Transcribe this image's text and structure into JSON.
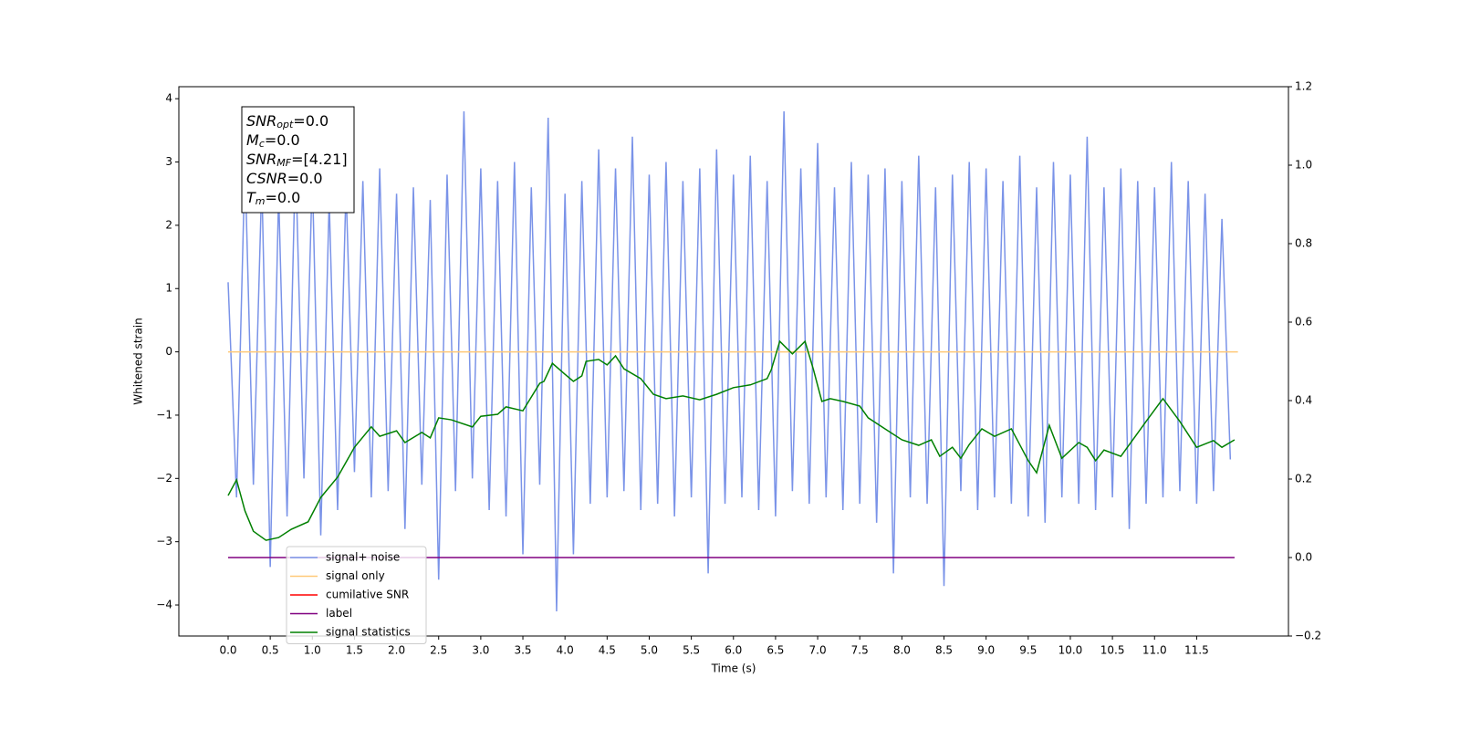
{
  "chart_data": {
    "type": "line",
    "xlabel": "Time (s)",
    "ylabel": "Whitened strain",
    "annotation": [
      {
        "main": "SNR",
        "sub": "opt",
        "rest": "=0.0"
      },
      {
        "main": "M",
        "sub": "c",
        "rest": "=0.0"
      },
      {
        "main": "SNR",
        "sub": "MF",
        "rest": "=[4.21]"
      },
      {
        "main": "CSNR",
        "rest": "=0.0"
      },
      {
        "main": "T",
        "sub": "m",
        "rest": "=0.0"
      }
    ],
    "xlim": [
      -0.585,
      12.59
    ],
    "xticks": [
      {
        "value": 0,
        "label": "0.0"
      },
      0.5,
      {
        "value": 1,
        "label": "1.0"
      },
      1.5,
      {
        "value": 2,
        "label": "2.0"
      },
      2.5,
      {
        "value": 3,
        "label": "3.0"
      },
      3.5,
      {
        "value": 4,
        "label": "4.0"
      },
      4.5,
      {
        "value": 5,
        "label": "5.0"
      },
      5.5,
      {
        "value": 6,
        "label": "6.0"
      },
      6.5,
      {
        "value": 7,
        "label": "7.0"
      },
      7.5,
      {
        "value": 8,
        "label": "8.0"
      },
      8.5,
      {
        "value": 9,
        "label": "9.0"
      },
      9.5,
      {
        "value": 10,
        "label": "10.0"
      },
      10.5,
      {
        "value": 11,
        "label": "11.0"
      },
      11.5
    ],
    "ylim": [
      -4.49,
      4.19
    ],
    "yticks": [
      {
        "value": -4,
        "label": "−4"
      },
      {
        "value": -3,
        "label": "−3"
      },
      {
        "value": -2,
        "label": "−2"
      },
      {
        "value": -1,
        "label": "−1"
      },
      0,
      1,
      2,
      3,
      4
    ],
    "y2lim": [
      -0.2,
      1.2
    ],
    "y2ticks": [
      {
        "value": -0.2,
        "label": "−0.2"
      },
      {
        "value": 0,
        "label": "0.0"
      },
      0.2,
      0.4,
      0.6,
      0.8,
      {
        "value": 1,
        "label": "1.0"
      },
      1.2
    ],
    "legend": "lower left",
    "series": [
      {
        "name": "signal+ noise",
        "color": "#7a93e8",
        "x": [
          0.0,
          0.1,
          0.2,
          0.3,
          0.4,
          0.5,
          0.6,
          0.7,
          0.8,
          0.9,
          1.0,
          1.1,
          1.2,
          1.3,
          1.4,
          1.5,
          1.6,
          1.7,
          1.8,
          1.9,
          2.0,
          2.1,
          2.2,
          2.3,
          2.4,
          2.5,
          2.6,
          2.7,
          2.8,
          2.9,
          3.0,
          3.1,
          3.2,
          3.3,
          3.4,
          3.5,
          3.6,
          3.7,
          3.8,
          3.9,
          4.0,
          4.1,
          4.2,
          4.3,
          4.4,
          4.5,
          4.6,
          4.7,
          4.8,
          4.9,
          5.0,
          5.1,
          5.2,
          5.3,
          5.4,
          5.5,
          5.6,
          5.7,
          5.8,
          5.9,
          6.0,
          6.1,
          6.2,
          6.3,
          6.4,
          6.5,
          6.6,
          6.7,
          6.8,
          6.9,
          7.0,
          7.1,
          7.2,
          7.3,
          7.4,
          7.5,
          7.6,
          7.7,
          7.8,
          7.9,
          8.0,
          8.1,
          8.2,
          8.3,
          8.4,
          8.5,
          8.6,
          8.7,
          8.8,
          8.9,
          9.0,
          9.1,
          9.2,
          9.3,
          9.4,
          9.5,
          9.6,
          9.7,
          9.8,
          9.9,
          10.0,
          10.1,
          10.2,
          10.3,
          10.4,
          10.5,
          10.6,
          10.7,
          10.8,
          10.9,
          11.0,
          11.1,
          11.2,
          11.3,
          11.4,
          11.5,
          11.6,
          11.7,
          11.8,
          11.9
        ],
        "values": [
          1.1,
          -2.3,
          3.0,
          -2.1,
          2.7,
          -3.4,
          2.5,
          -2.6,
          3.1,
          -2.0,
          2.8,
          -2.9,
          2.4,
          -2.5,
          2.6,
          -1.9,
          2.7,
          -2.3,
          2.9,
          -2.2,
          2.5,
          -2.8,
          2.6,
          -2.1,
          2.4,
          -3.6,
          2.8,
          -2.2,
          3.8,
          -2.0,
          2.9,
          -2.5,
          2.7,
          -2.6,
          3.0,
          -3.2,
          2.6,
          -2.1,
          3.7,
          -4.1,
          2.5,
          -3.2,
          2.7,
          -2.4,
          3.2,
          -2.3,
          2.9,
          -2.2,
          3.4,
          -2.5,
          2.8,
          -2.4,
          3.0,
          -2.6,
          2.7,
          -2.3,
          2.9,
          -3.5,
          3.2,
          -2.4,
          2.8,
          -2.3,
          3.1,
          -2.5,
          2.7,
          -2.6,
          3.8,
          -2.2,
          2.9,
          -2.4,
          3.3,
          -2.3,
          2.6,
          -2.5,
          3.0,
          -2.4,
          2.8,
          -2.7,
          2.9,
          -3.5,
          2.7,
          -2.3,
          3.1,
          -2.4,
          2.6,
          -3.7,
          2.8,
          -2.2,
          3.0,
          -2.5,
          2.9,
          -2.3,
          2.7,
          -2.4,
          3.1,
          -2.6,
          2.6,
          -2.7,
          3.0,
          -2.3,
          2.8,
          -2.4,
          3.4,
          -2.5,
          2.6,
          -2.3,
          2.9,
          -2.8,
          2.7,
          -2.4,
          2.6,
          -2.3,
          3.0,
          -2.2,
          2.7,
          -2.4,
          2.5,
          -2.2,
          2.1,
          -1.7
        ]
      },
      {
        "name": "signal only",
        "color": "#ffc978",
        "x": [
          0,
          11.99
        ],
        "values": [
          0,
          0
        ]
      },
      {
        "name": "cumilative SNR",
        "color": "#ff0000",
        "x": [],
        "values": []
      },
      {
        "name": "label",
        "color": "#800080",
        "axis": "y2",
        "x": [
          0,
          11.95
        ],
        "values": [
          0,
          0
        ]
      },
      {
        "name": "signal statistics",
        "color": "#008000",
        "axis": "y2",
        "x": [
          0.0,
          0.1,
          0.2,
          0.3,
          0.45,
          0.6,
          0.75,
          0.95,
          1.1,
          1.3,
          1.5,
          1.7,
          1.8,
          2.0,
          2.1,
          2.3,
          2.4,
          2.5,
          2.65,
          2.9,
          3.0,
          3.2,
          3.3,
          3.5,
          3.7,
          3.75,
          3.85,
          4.0,
          4.1,
          4.2,
          4.25,
          4.4,
          4.5,
          4.6,
          4.7,
          4.9,
          5.05,
          5.2,
          5.4,
          5.6,
          5.8,
          6.0,
          6.2,
          6.4,
          6.45,
          6.55,
          6.7,
          6.85,
          6.95,
          7.05,
          7.15,
          7.3,
          7.5,
          7.6,
          7.8,
          8.0,
          8.2,
          8.35,
          8.45,
          8.6,
          8.7,
          8.8,
          8.95,
          9.1,
          9.3,
          9.5,
          9.6,
          9.75,
          9.9,
          10.1,
          10.2,
          10.3,
          10.4,
          10.6,
          10.9,
          11.1,
          11.3,
          11.5,
          11.7,
          11.8,
          11.95
        ],
        "values": [
          0.158,
          0.198,
          0.119,
          0.067,
          0.044,
          0.051,
          0.072,
          0.091,
          0.153,
          0.205,
          0.281,
          0.333,
          0.309,
          0.323,
          0.293,
          0.319,
          0.305,
          0.356,
          0.351,
          0.333,
          0.36,
          0.365,
          0.384,
          0.374,
          0.444,
          0.449,
          0.495,
          0.467,
          0.449,
          0.463,
          0.5,
          0.505,
          0.491,
          0.514,
          0.481,
          0.456,
          0.416,
          0.405,
          0.412,
          0.402,
          0.416,
          0.433,
          0.44,
          0.456,
          0.479,
          0.551,
          0.519,
          0.551,
          0.479,
          0.398,
          0.405,
          0.398,
          0.386,
          0.356,
          0.328,
          0.3,
          0.286,
          0.3,
          0.258,
          0.281,
          0.253,
          0.288,
          0.328,
          0.309,
          0.328,
          0.247,
          0.216,
          0.337,
          0.253,
          0.293,
          0.281,
          0.247,
          0.274,
          0.258,
          0.347,
          0.405,
          0.347,
          0.281,
          0.298,
          0.281,
          0.3
        ]
      }
    ]
  }
}
